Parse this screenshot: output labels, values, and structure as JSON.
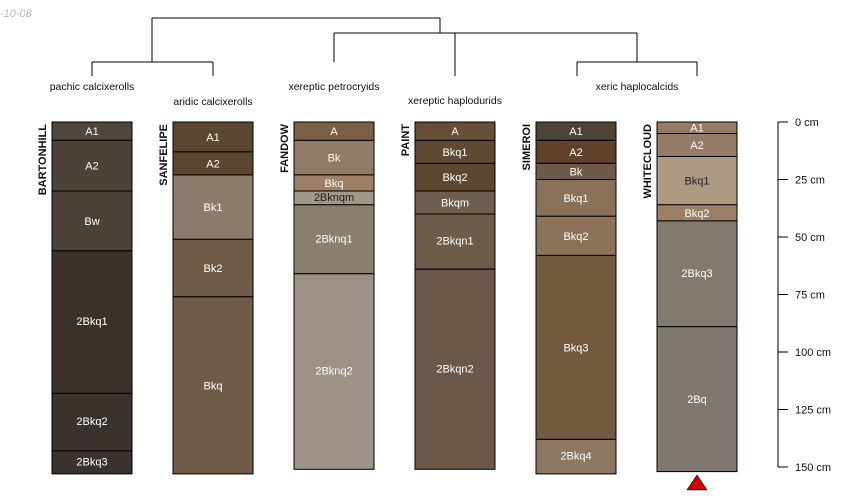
{
  "stamp": "-10-08",
  "taxa": [
    "pachic calcixerolls",
    "aridic calcixerolls",
    "xereptic petrocryids",
    "xereptic haplodurids",
    "xeric haplocalcids"
  ],
  "profiles": [
    {
      "name": "BARTONHILL",
      "horizons": [
        {
          "label": "A1",
          "top": 0,
          "bottom": 8,
          "color": "#4f463e"
        },
        {
          "label": "A2",
          "top": 8,
          "bottom": 30,
          "color": "#4b433a"
        },
        {
          "label": "Bw",
          "top": 30,
          "bottom": 56,
          "color": "#4b4239"
        },
        {
          "label": "2Bkq1",
          "top": 56,
          "bottom": 118,
          "color": "#3a312a"
        },
        {
          "label": "2Bkq2",
          "top": 118,
          "bottom": 143,
          "color": "#3a322c"
        },
        {
          "label": "2Bkq3",
          "top": 143,
          "bottom": 153,
          "color": "#3a322c"
        }
      ]
    },
    {
      "name": "SANFELIPE",
      "horizons": [
        {
          "label": "A1",
          "top": 0,
          "bottom": 13,
          "color": "#5b4630"
        },
        {
          "label": "A2",
          "top": 13,
          "bottom": 23,
          "color": "#5d4630"
        },
        {
          "label": "Bk1",
          "top": 23,
          "bottom": 51,
          "color": "#8c7b6b"
        },
        {
          "label": "Bk2",
          "top": 51,
          "bottom": 76,
          "color": "#6e5b48"
        },
        {
          "label": "Bkq",
          "top": 76,
          "bottom": 153,
          "color": "#6f5b47"
        }
      ]
    },
    {
      "name": "FANDOW",
      "horizons": [
        {
          "label": "A",
          "top": 0,
          "bottom": 8,
          "color": "#7b6045"
        },
        {
          "label": "Bk",
          "top": 8,
          "bottom": 23,
          "color": "#907c66"
        },
        {
          "label": "Bkq",
          "top": 23,
          "bottom": 30,
          "color": "#9b8066"
        },
        {
          "label": "2Bknqm",
          "top": 30,
          "bottom": 36,
          "color": "#a19888"
        },
        {
          "label": "2Bknq1",
          "top": 36,
          "bottom": 66,
          "color": "#8b8070"
        },
        {
          "label": "2Bknq2",
          "top": 66,
          "bottom": 151,
          "color": "#9c9285"
        }
      ]
    },
    {
      "name": "PAINT",
      "horizons": [
        {
          "label": "A",
          "top": 0,
          "bottom": 8,
          "color": "#664e37"
        },
        {
          "label": "Bkq1",
          "top": 8,
          "bottom": 18,
          "color": "#5e4933"
        },
        {
          "label": "Bkq2",
          "top": 18,
          "bottom": 30,
          "color": "#5c4731"
        },
        {
          "label": "Bkqm",
          "top": 30,
          "bottom": 40,
          "color": "#6d5e4d"
        },
        {
          "label": "2Bkqn1",
          "top": 40,
          "bottom": 64,
          "color": "#6d5c4a"
        },
        {
          "label": "2Bkqn2",
          "top": 64,
          "bottom": 151,
          "color": "#6c5848"
        }
      ]
    },
    {
      "name": "SIMEROI",
      "horizons": [
        {
          "label": "A1",
          "top": 0,
          "bottom": 8,
          "color": "#4f4335"
        },
        {
          "label": "A2",
          "top": 8,
          "bottom": 18,
          "color": "#5e4128"
        },
        {
          "label": "Bk",
          "top": 18,
          "bottom": 25,
          "color": "#6c5a46"
        },
        {
          "label": "Bkq1",
          "top": 25,
          "bottom": 41,
          "color": "#8a7258"
        },
        {
          "label": "Bkq2",
          "top": 41,
          "bottom": 58,
          "color": "#8c7258"
        },
        {
          "label": "Bkq3",
          "top": 58,
          "bottom": 138,
          "color": "#735a3f"
        },
        {
          "label": "2Bkq4",
          "top": 138,
          "bottom": 153,
          "color": "#8c7861"
        }
      ]
    },
    {
      "name": "WHITECLOUD",
      "horizons": [
        {
          "label": "A1",
          "top": 0,
          "bottom": 5,
          "color": "#947b63"
        },
        {
          "label": "A2",
          "top": 5,
          "bottom": 15,
          "color": "#947d66"
        },
        {
          "label": "Bkq1",
          "top": 15,
          "bottom": 36,
          "color": "#ad9a82"
        },
        {
          "label": "Bkq2",
          "top": 36,
          "bottom": 43,
          "color": "#9a8067"
        },
        {
          "label": "2Bkq3",
          "top": 43,
          "bottom": 89,
          "color": "#817a71"
        },
        {
          "label": "2Bq",
          "top": 89,
          "bottom": 152,
          "color": "#7e7870"
        }
      ]
    }
  ],
  "axis": {
    "max_depth_cm": 150,
    "ticks": [
      0,
      25,
      50,
      75,
      100,
      125,
      150
    ],
    "unit": "cm"
  },
  "marker_color": "#d00000"
}
